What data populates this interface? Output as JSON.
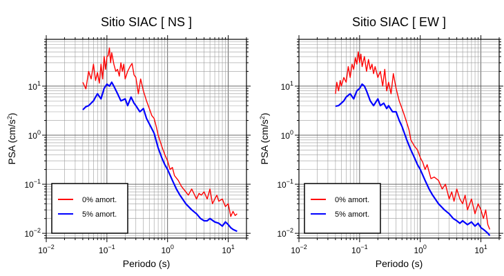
{
  "chart_data": [
    {
      "type": "line",
      "title": "Sitio SIAC [ NS ]",
      "xlabel": "Periodo (s)",
      "ylabel": "PSA (cm/s²)",
      "xscale": "log",
      "yscale": "log",
      "xlim": [
        0.01,
        20
      ],
      "ylim": [
        0.008,
        90
      ],
      "grid": true,
      "legend_position": "bottom-left",
      "x_ticks": [
        {
          "base": "10",
          "exp": "−2"
        },
        {
          "base": "10",
          "exp": "−1"
        },
        {
          "base": "10",
          "exp": "0"
        },
        {
          "base": "10",
          "exp": "1"
        }
      ],
      "y_ticks": [
        {
          "base": "10",
          "exp": "−2"
        },
        {
          "base": "10",
          "exp": "−1"
        },
        {
          "base": "10",
          "exp": "0"
        },
        {
          "base": "10",
          "exp": "1"
        }
      ],
      "series": [
        {
          "name": "0% amort.",
          "color": "#ff0000",
          "x": [
            0.04,
            0.045,
            0.05,
            0.055,
            0.06,
            0.065,
            0.07,
            0.075,
            0.08,
            0.085,
            0.09,
            0.095,
            0.1,
            0.105,
            0.11,
            0.115,
            0.12,
            0.13,
            0.14,
            0.15,
            0.16,
            0.17,
            0.18,
            0.19,
            0.2,
            0.22,
            0.24,
            0.26,
            0.28,
            0.3,
            0.33,
            0.36,
            0.4,
            0.45,
            0.5,
            0.55,
            0.6,
            0.65,
            0.7,
            0.8,
            0.9,
            1.0,
            1.1,
            1.2,
            1.3,
            1.5,
            1.7,
            2.0,
            2.2,
            2.5,
            2.8,
            3.0,
            3.3,
            3.6,
            4.0,
            4.5,
            5.0,
            5.5,
            6.0,
            6.5,
            7.0,
            8.0,
            9.0,
            10.0,
            11.0,
            12.0,
            13.0,
            14.0
          ],
          "values": [
            12.0,
            8.8,
            20.0,
            14.0,
            28.0,
            13.0,
            19.0,
            11.5,
            28.0,
            14.0,
            40.0,
            22.0,
            40.0,
            42.0,
            60.0,
            30.0,
            48.0,
            28.0,
            20.0,
            22.0,
            16.0,
            30.0,
            20.0,
            28.0,
            14.0,
            20.0,
            25.0,
            29.0,
            17.0,
            15.0,
            7.0,
            14.0,
            8.0,
            5.0,
            3.5,
            2.5,
            2.2,
            1.5,
            1.0,
            0.6,
            0.4,
            0.3,
            0.2,
            0.22,
            0.15,
            0.12,
            0.09,
            0.07,
            0.06,
            0.08,
            0.06,
            0.05,
            0.065,
            0.06,
            0.07,
            0.05,
            0.08,
            0.04,
            0.05,
            0.06,
            0.045,
            0.05,
            0.035,
            0.04,
            0.022,
            0.028,
            0.023,
            0.025
          ]
        },
        {
          "name": "5% amort.",
          "color": "#0000ff",
          "x": [
            0.04,
            0.045,
            0.05,
            0.055,
            0.06,
            0.065,
            0.07,
            0.08,
            0.09,
            0.1,
            0.11,
            0.12,
            0.13,
            0.15,
            0.17,
            0.2,
            0.22,
            0.25,
            0.28,
            0.3,
            0.35,
            0.4,
            0.45,
            0.5,
            0.6,
            0.7,
            0.8,
            0.9,
            1.0,
            1.2,
            1.4,
            1.6,
            2.0,
            2.5,
            3.0,
            3.5,
            4.0,
            4.5,
            5.0,
            6.0,
            7.0,
            8.0,
            9.0,
            10.0,
            11.0,
            12.0,
            14.0
          ],
          "values": [
            3.3,
            3.8,
            4.0,
            4.5,
            5.0,
            6.0,
            7.0,
            5.5,
            9.0,
            11.0,
            10.0,
            12.0,
            10.0,
            7.0,
            5.0,
            5.5,
            4.0,
            6.0,
            4.5,
            4.0,
            3.0,
            3.5,
            2.2,
            1.7,
            1.1,
            0.55,
            0.35,
            0.25,
            0.2,
            0.12,
            0.08,
            0.06,
            0.04,
            0.03,
            0.025,
            0.02,
            0.018,
            0.018,
            0.02,
            0.017,
            0.016,
            0.014,
            0.017,
            0.015,
            0.013,
            0.012,
            0.011
          ]
        }
      ]
    },
    {
      "type": "line",
      "title": "Sitio SIAC [ EW ]",
      "xlabel": "Periodo (s)",
      "ylabel": "PSA (cm/s²)",
      "xscale": "log",
      "yscale": "log",
      "xlim": [
        0.01,
        20
      ],
      "ylim": [
        0.008,
        90
      ],
      "grid": true,
      "legend_position": "bottom-left",
      "x_ticks": [
        {
          "base": "10",
          "exp": "−2"
        },
        {
          "base": "10",
          "exp": "−1"
        },
        {
          "base": "10",
          "exp": "0"
        },
        {
          "base": "10",
          "exp": "1"
        }
      ],
      "y_ticks": [
        {
          "base": "10",
          "exp": "−2"
        },
        {
          "base": "10",
          "exp": "−1"
        },
        {
          "base": "10",
          "exp": "0"
        },
        {
          "base": "10",
          "exp": "1"
        }
      ],
      "series": [
        {
          "name": "0% amort.",
          "color": "#ff0000",
          "x": [
            0.04,
            0.042,
            0.045,
            0.048,
            0.05,
            0.055,
            0.06,
            0.065,
            0.07,
            0.075,
            0.08,
            0.085,
            0.09,
            0.095,
            0.1,
            0.105,
            0.11,
            0.12,
            0.13,
            0.14,
            0.15,
            0.16,
            0.17,
            0.18,
            0.2,
            0.22,
            0.24,
            0.26,
            0.28,
            0.3,
            0.33,
            0.36,
            0.4,
            0.45,
            0.5,
            0.55,
            0.6,
            0.65,
            0.7,
            0.8,
            0.9,
            1.0,
            1.1,
            1.2,
            1.3,
            1.5,
            1.7,
            2.0,
            2.3,
            2.6,
            3.0,
            3.3,
            3.6,
            4.0,
            4.5,
            5.0,
            5.5,
            6.0,
            7.0,
            8.0,
            9.0,
            10.0,
            11.0,
            12.0,
            13.0,
            14.0
          ],
          "values": [
            7.0,
            12.0,
            8.0,
            13.0,
            10.0,
            15.0,
            12.0,
            25.0,
            15.0,
            28.0,
            22.0,
            38.0,
            28.0,
            50.0,
            30.0,
            45.0,
            25.0,
            40.0,
            20.0,
            35.0,
            22.0,
            28.0,
            18.0,
            25.0,
            15.0,
            20.0,
            10.0,
            22.0,
            8.0,
            12.0,
            7.0,
            18.0,
            9.0,
            5.0,
            3.5,
            2.5,
            1.8,
            1.3,
            0.8,
            0.6,
            0.5,
            0.35,
            0.28,
            0.2,
            0.25,
            0.13,
            0.14,
            0.12,
            0.08,
            0.1,
            0.05,
            0.07,
            0.045,
            0.08,
            0.05,
            0.04,
            0.06,
            0.03,
            0.05,
            0.025,
            0.04,
            0.03,
            0.02,
            0.03,
            0.015,
            0.012
          ]
        },
        {
          "name": "5% amort.",
          "color": "#0000ff",
          "x": [
            0.04,
            0.045,
            0.05,
            0.055,
            0.06,
            0.065,
            0.07,
            0.08,
            0.09,
            0.1,
            0.11,
            0.12,
            0.13,
            0.15,
            0.17,
            0.2,
            0.22,
            0.25,
            0.28,
            0.3,
            0.35,
            0.4,
            0.45,
            0.5,
            0.6,
            0.7,
            0.8,
            0.9,
            1.0,
            1.2,
            1.4,
            1.6,
            2.0,
            2.5,
            3.0,
            3.5,
            4.0,
            4.5,
            5.0,
            6.0,
            7.0,
            8.0,
            9.0,
            10.0,
            11.0,
            12.0,
            13.0,
            14.0
          ],
          "values": [
            3.9,
            4.0,
            4.5,
            5.0,
            6.0,
            6.5,
            7.0,
            5.5,
            8.0,
            9.0,
            11.0,
            10.0,
            8.0,
            5.0,
            4.0,
            5.5,
            4.0,
            4.5,
            3.5,
            4.0,
            3.0,
            3.0,
            2.0,
            1.5,
            0.8,
            0.5,
            0.35,
            0.25,
            0.2,
            0.12,
            0.08,
            0.06,
            0.04,
            0.03,
            0.025,
            0.02,
            0.018,
            0.016,
            0.018,
            0.015,
            0.017,
            0.014,
            0.016,
            0.013,
            0.012,
            0.011,
            0.01,
            0.009
          ]
        }
      ]
    }
  ]
}
